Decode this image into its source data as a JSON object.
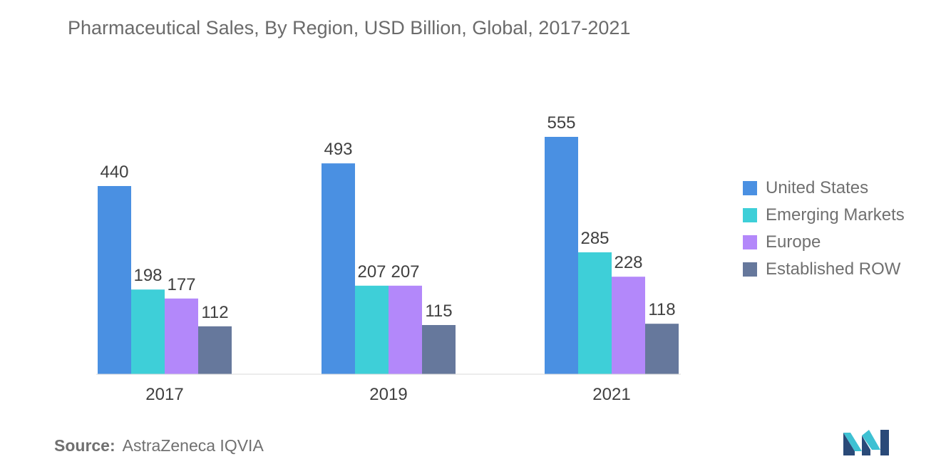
{
  "chart_data": {
    "type": "bar",
    "title": "Pharmaceutical Sales, By Region,  USD Billion, Global, 2017-2021",
    "categories": [
      "2017",
      "2019",
      "2021"
    ],
    "series": [
      {
        "name": "United States",
        "values": [
          440,
          493,
          555
        ],
        "color": "#4a90e2"
      },
      {
        "name": "Emerging Markets",
        "values": [
          198,
          207,
          285
        ],
        "color": "#3ecfd8"
      },
      {
        "name": "Europe",
        "values": [
          177,
          207,
          228
        ],
        "color": "#b388fa"
      },
      {
        "name": "Established ROW",
        "values": [
          112,
          115,
          118
        ],
        "color": "#66789c"
      }
    ],
    "xlabel": "",
    "ylabel": "",
    "ylim": [
      0,
      600
    ],
    "grid": false,
    "legend_position": "right"
  },
  "source": {
    "label": "Source:",
    "text": "AstraZeneca IQVIA"
  },
  "logo": {
    "icon": "mordor-intelligence-logo-icon",
    "colors": [
      "#2a4a78",
      "#3ec1d3"
    ]
  }
}
